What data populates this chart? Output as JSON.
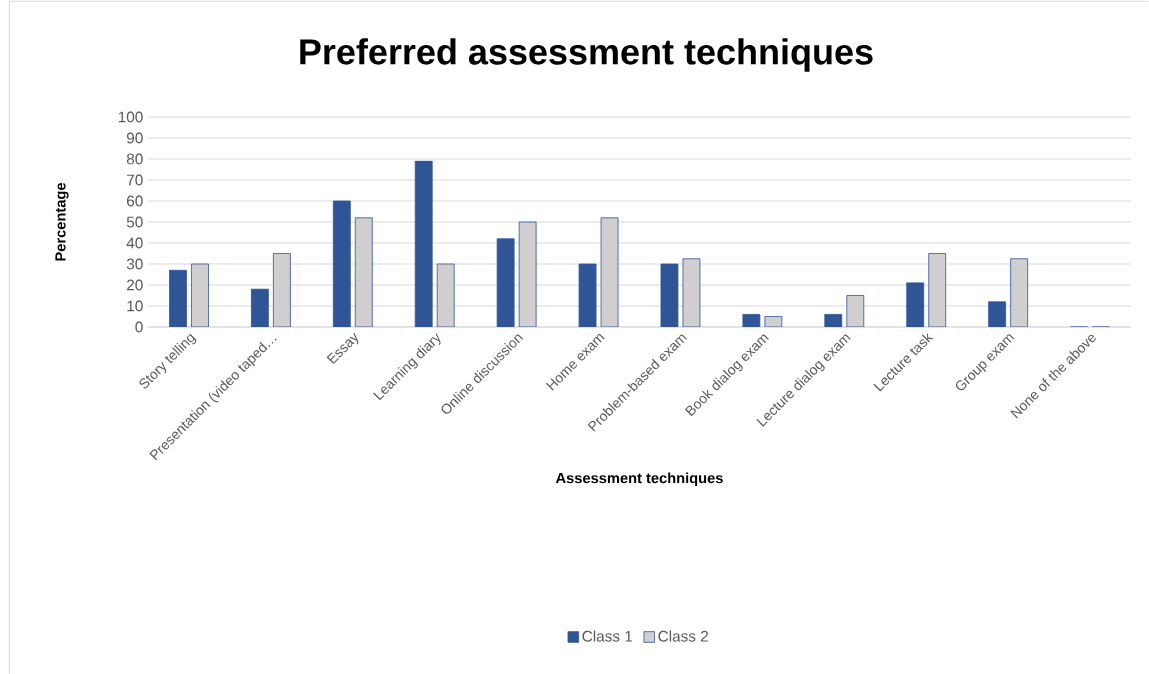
{
  "chart_data": {
    "type": "bar",
    "title": "Preferred assessment techniques",
    "xlabel": "Assessment techniques",
    "ylabel": "Percentage",
    "categories": [
      "Story telling",
      "Presentation (video taped…",
      "Essay",
      "Learning diary",
      "Online discussion",
      "Home exam",
      "Problem-based exam",
      "Book dialog exam",
      "Lecture dialog exam",
      "Lecture task",
      "Group exam",
      "None of the above"
    ],
    "series": [
      {
        "name": "Class 1",
        "color": "#2f5597",
        "values": [
          27,
          18,
          60,
          79,
          42,
          30,
          30,
          6,
          6,
          21,
          12,
          0
        ]
      },
      {
        "name": "Class 2",
        "color": "#d0cece",
        "values": [
          30,
          35,
          52,
          30,
          50,
          52,
          32.5,
          5,
          15,
          35,
          32.5,
          0
        ]
      }
    ],
    "ylim": [
      0,
      100
    ],
    "yticks": [
      0,
      10,
      20,
      30,
      40,
      50,
      60,
      70,
      80,
      90,
      100
    ],
    "grid": "y",
    "legend": "bottom"
  }
}
